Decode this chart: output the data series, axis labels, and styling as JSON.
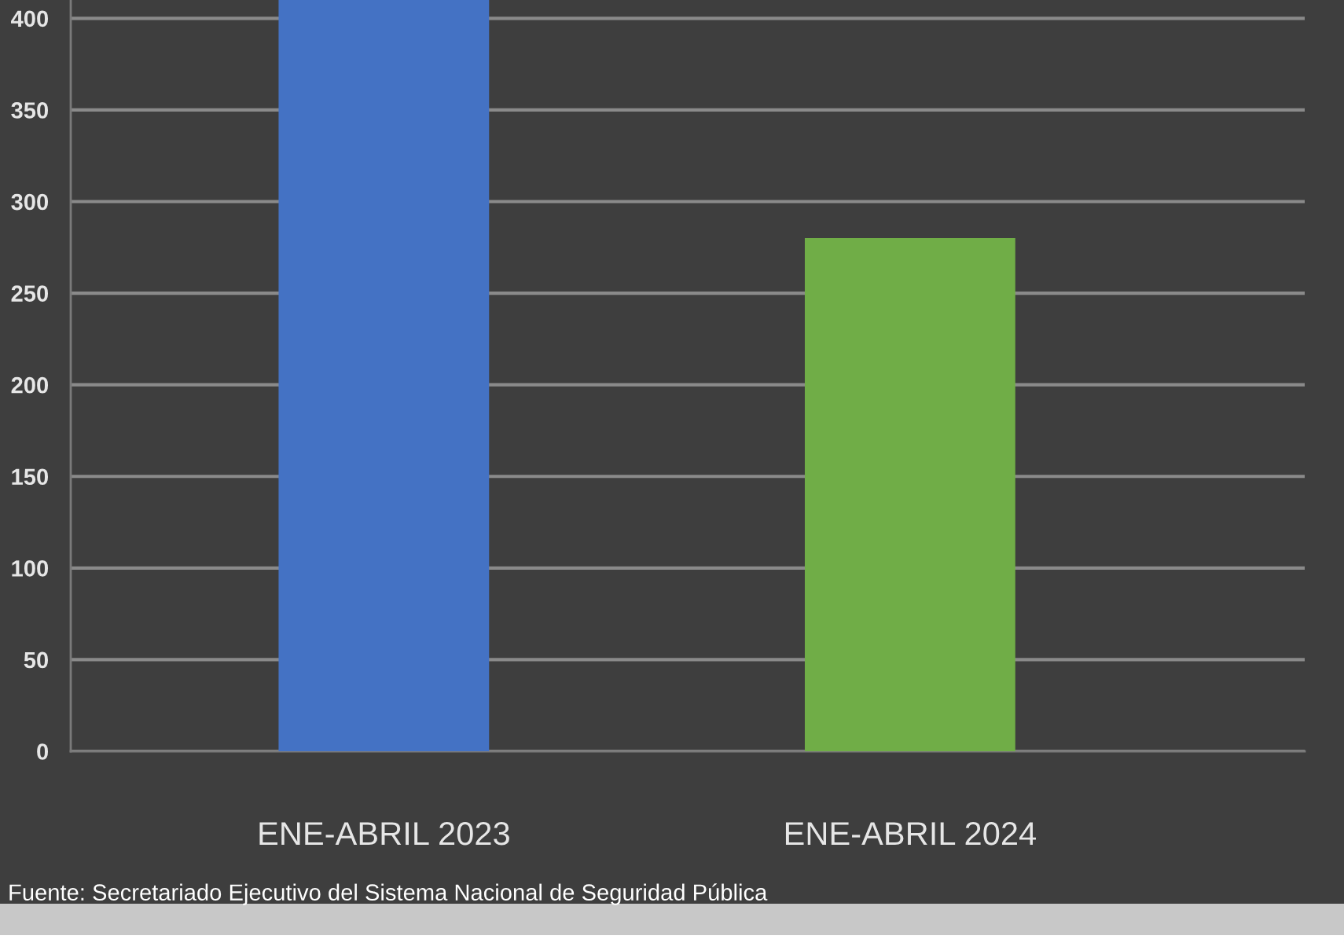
{
  "chart_data": {
    "type": "bar",
    "categories": [
      "ENE-ABRIL 2023",
      "ENE-ABRIL 2024"
    ],
    "values": [
      410,
      280
    ],
    "colors": [
      "#4472c4",
      "#70ad47"
    ],
    "ylim": [
      0,
      410
    ],
    "yticks": [
      0,
      50,
      100,
      150,
      200,
      250,
      300,
      350,
      400
    ],
    "grid": "y",
    "annotations": [
      "Fuente: Secretariado Ejecutivo del Sistema Nacional de Seguridad Pública"
    ]
  }
}
